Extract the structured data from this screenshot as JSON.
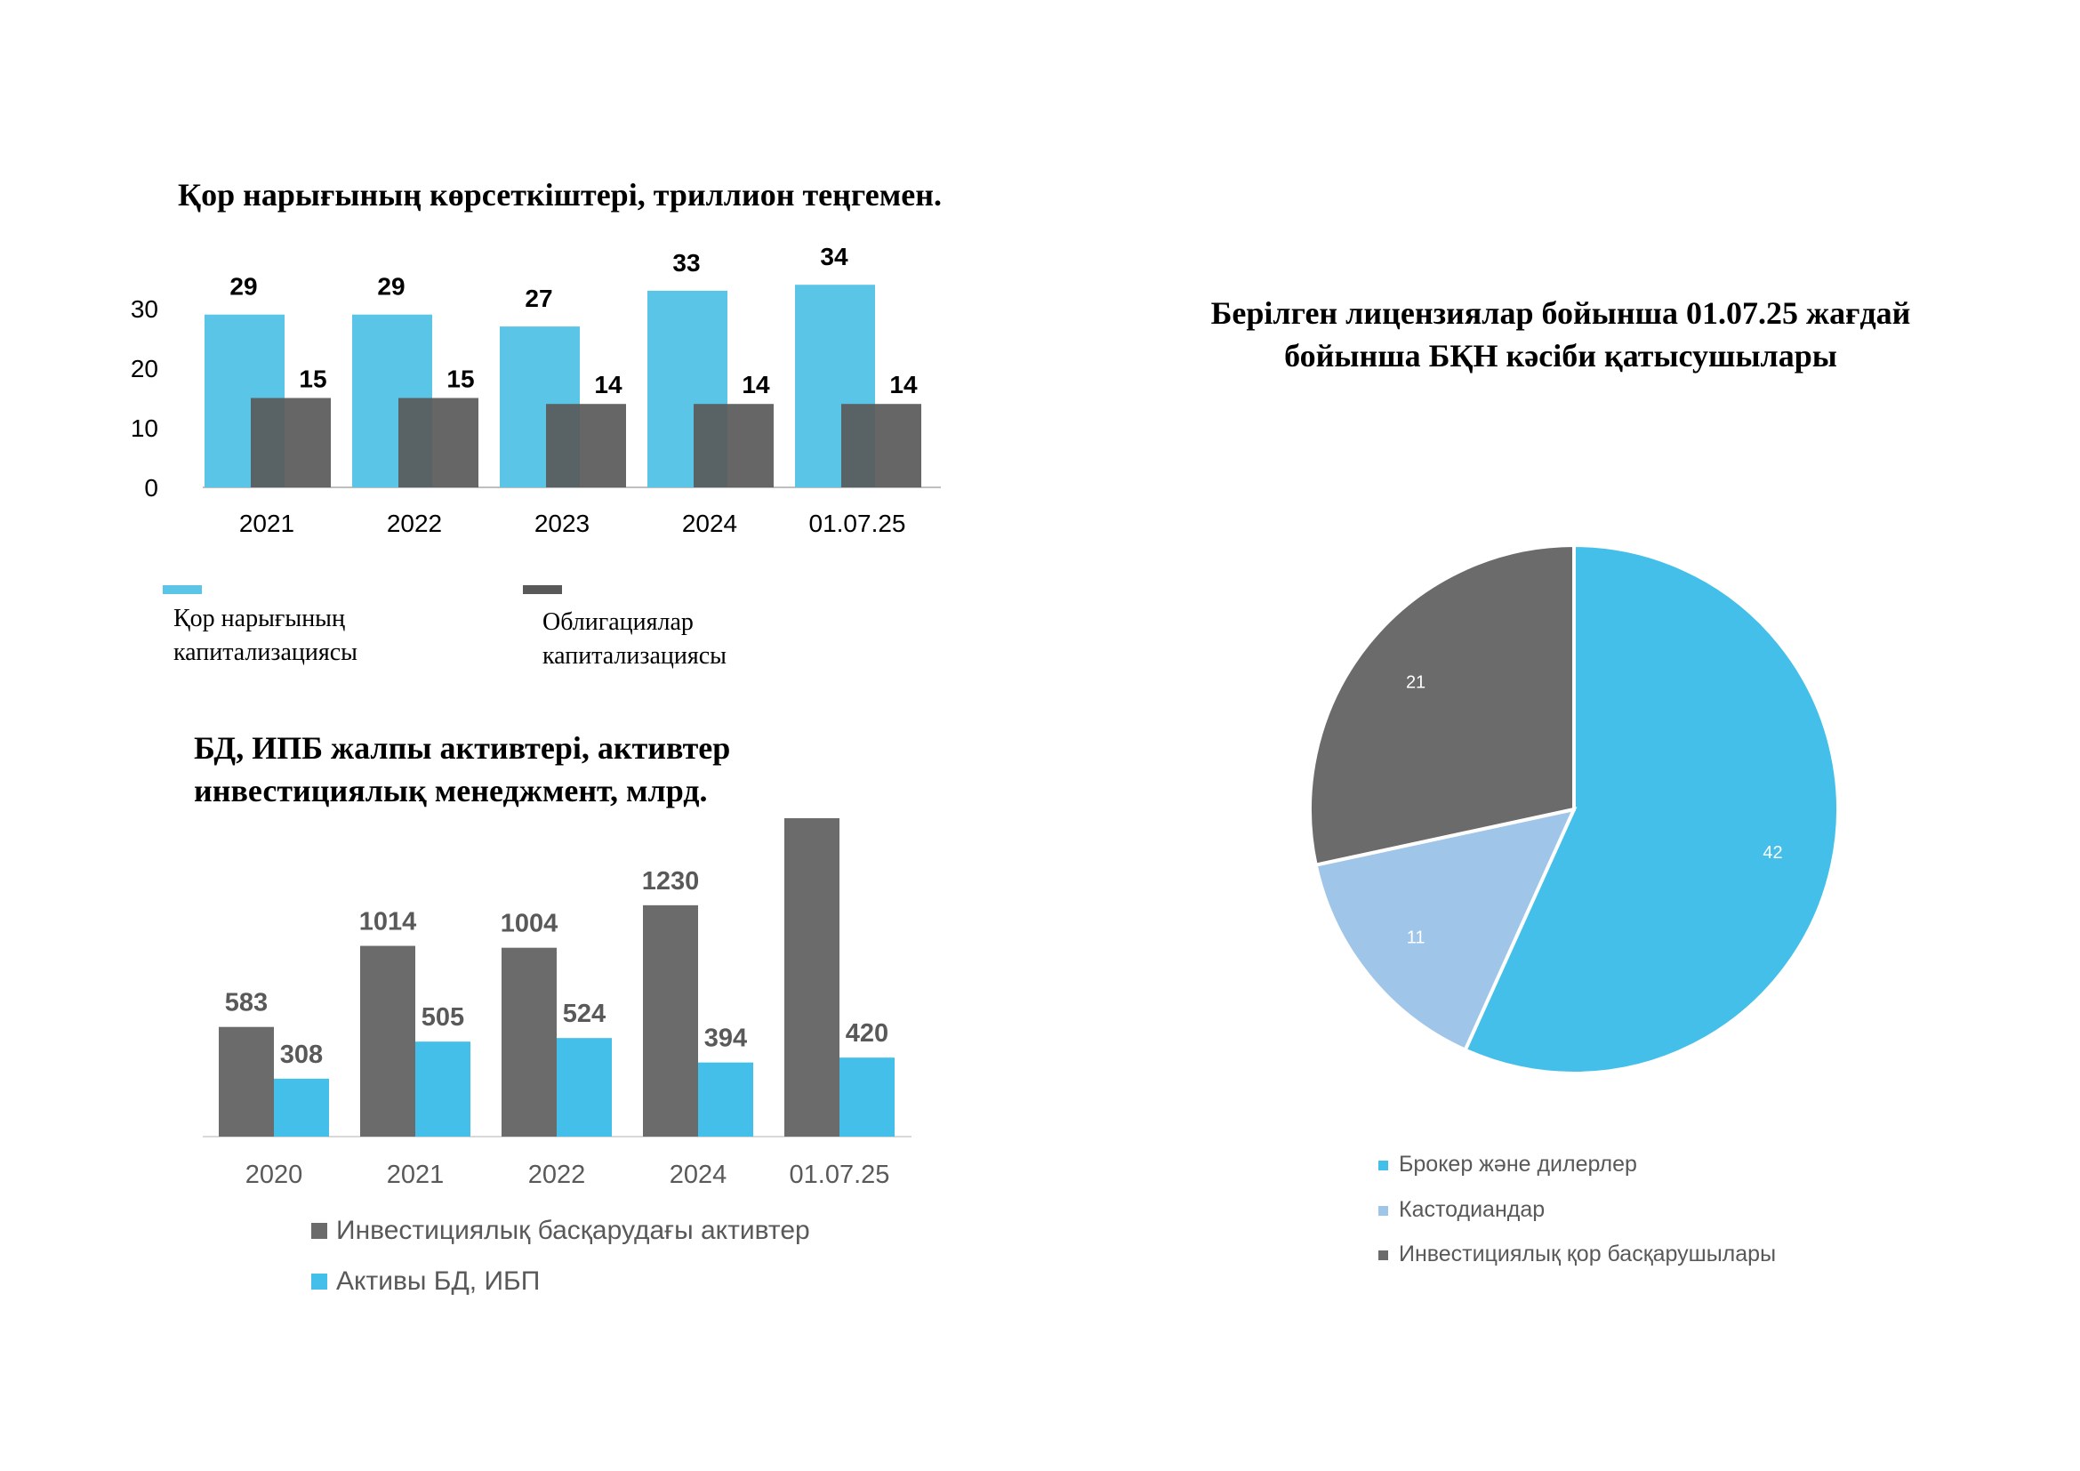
{
  "chart_data": [
    {
      "type": "bar",
      "title": "Қор нарығының көрсеткіштері, триллион теңгемен.",
      "categories": [
        "2021",
        "2022",
        "2023",
        "2024",
        "01.07.25"
      ],
      "series": [
        {
          "name": "Қор нарығының капитализациясы",
          "values": [
            29,
            29,
            27,
            33,
            34
          ],
          "color": "#5bc5e8"
        },
        {
          "name": "Облигациялар капитализациясы",
          "values": [
            15,
            15,
            14,
            14,
            14
          ],
          "color": "#595959"
        }
      ],
      "yticks": [
        "0",
        "10",
        "20",
        "30"
      ],
      "ylim": [
        0,
        40
      ],
      "grid": false,
      "legend": "bottom"
    },
    {
      "type": "bar",
      "title": "БД, ИПБ жалпы активтері, активтер инвестициялық менеджмент, млрд.",
      "categories": [
        "2020",
        "2021",
        "2022",
        "2024",
        "01.07.25"
      ],
      "series": [
        {
          "name": "Инвестициялық басқарудағы активтер",
          "values": [
            583,
            1014,
            1004,
            1230,
            1764
          ],
          "color": "#6b6b6b"
        },
        {
          "name": "Активы БД, ИБП",
          "values": [
            308,
            505,
            524,
            394,
            420
          ],
          "color": "#43bfe9"
        }
      ],
      "ylim": [
        0,
        1900
      ],
      "grid": false,
      "legend": "bottom"
    },
    {
      "type": "pie",
      "title": "Берілген лицензиялар бойынша 01.07.25 жағдай бойынша БҚН кәсіби қатысушылары",
      "labels": [
        "Брокер және дилерлер",
        "Кастодиандар",
        "Инвестициялық қор басқарушылары"
      ],
      "values": [
        42,
        11,
        21
      ],
      "colors": [
        "#43bfe9",
        "#9fc5e8",
        "#6b6b6b"
      ],
      "legend": "bottom"
    }
  ]
}
